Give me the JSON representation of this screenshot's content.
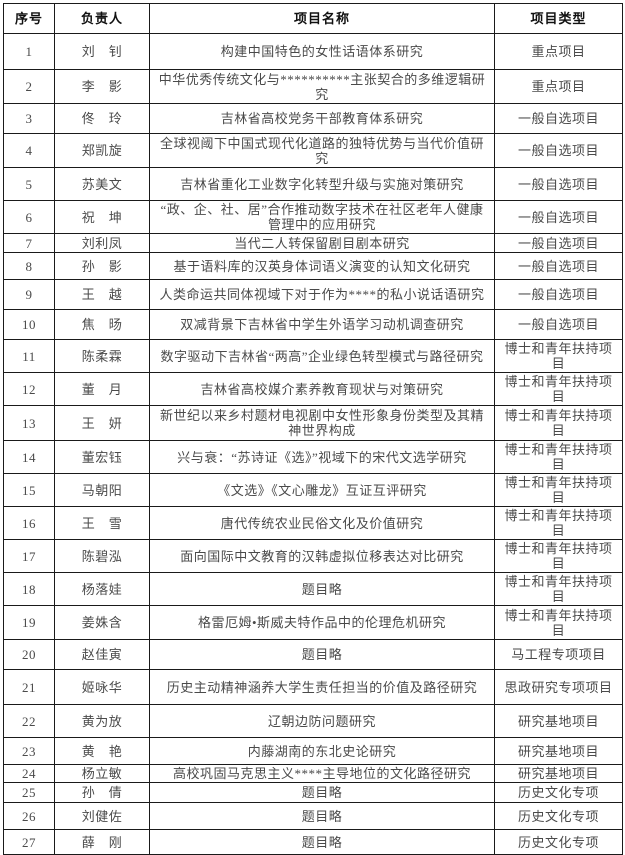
{
  "table": {
    "headers": [
      "序号",
      "负责人",
      "项目名称",
      "项目类型"
    ],
    "rows": [
      {
        "no": "1",
        "leader": "刘　钊",
        "title": "构建中国特色的女性话语体系研究",
        "type": "重点项目"
      },
      {
        "no": "2",
        "leader": "李　影",
        "title": "中华优秀传统文化与**********主张契合的多维逻辑研究",
        "type": "重点项目"
      },
      {
        "no": "3",
        "leader": "佟　玲",
        "title": "吉林省高校党务干部教育体系研究",
        "type": "一般自选项目"
      },
      {
        "no": "4",
        "leader": "郑凯旋",
        "title": "全球视阈下中国式现代化道路的独特优势与当代价值研究",
        "type": "一般自选项目"
      },
      {
        "no": "5",
        "leader": "苏美文",
        "title": "吉林省重化工业数字化转型升级与实施对策研究",
        "type": "一般自选项目"
      },
      {
        "no": "6",
        "leader": "祝　坤",
        "title": "“政、企、社、居”合作推动数字技术在社区老年人健康管理中的应用研究",
        "type": "一般自选项目"
      },
      {
        "no": "7",
        "leader": "刘利凤",
        "title": "当代二人转保留剧目剧本研究",
        "type": "一般自选项目"
      },
      {
        "no": "8",
        "leader": "孙　影",
        "title": "基于语料库的汉英身体词语义演变的认知文化研究",
        "type": "一般自选项目"
      },
      {
        "no": "9",
        "leader": "王　越",
        "title": "人类命运共同体视域下对于作为****的私小说话语研究",
        "type": "一般自选项目"
      },
      {
        "no": "10",
        "leader": "焦　旸",
        "title": "双减背景下吉林省中学生外语学习动机调查研究",
        "type": "一般自选项目"
      },
      {
        "no": "11",
        "leader": "陈柔霖",
        "title": "数字驱动下吉林省“两高”企业绿色转型模式与路径研究",
        "type": "博士和青年扶持项目"
      },
      {
        "no": "12",
        "leader": "董　月",
        "title": "吉林省高校媒介素养教育现状与对策研究",
        "type": "博士和青年扶持项目"
      },
      {
        "no": "13",
        "leader": "王　妍",
        "title": "新世纪以来乡村题材电视剧中女性形象身份类型及其精神世界构成",
        "type": "博士和青年扶持项目"
      },
      {
        "no": "14",
        "leader": "董宏钰",
        "title": "兴与衰：“苏诗证《选》”视域下的宋代文选学研究",
        "type": "博士和青年扶持项目"
      },
      {
        "no": "15",
        "leader": "马朝阳",
        "title": "《文选》《文心雕龙》互证互评研究",
        "type": "博士和青年扶持项目"
      },
      {
        "no": "16",
        "leader": "王　雪",
        "title": "唐代传统农业民俗文化及价值研究",
        "type": "博士和青年扶持项目"
      },
      {
        "no": "17",
        "leader": "陈碧泓",
        "title": "面向国际中文教育的汉韩虚拟位移表达对比研究",
        "type": "博士和青年扶持项目"
      },
      {
        "no": "18",
        "leader": "杨落娃",
        "title": "题目略",
        "type": "博士和青年扶持项目"
      },
      {
        "no": "19",
        "leader": "姜姝含",
        "title": "格雷厄姆•斯威夫特作品中的伦理危机研究",
        "type": "博士和青年扶持项目"
      },
      {
        "no": "20",
        "leader": "赵佳寅",
        "title": "题目略",
        "type": "马工程专项项目"
      },
      {
        "no": "21",
        "leader": "姬咏华",
        "title": "历史主动精神涵养大学生责任担当的价值及路径研究",
        "type": "思政研究专项项目"
      },
      {
        "no": "22",
        "leader": "黄为放",
        "title": "辽朝边防问题研究",
        "type": "研究基地项目"
      },
      {
        "no": "23",
        "leader": "黄　艳",
        "title": "内藤湖南的东北史论研究",
        "type": "研究基地项目"
      },
      {
        "no": "24",
        "leader": "杨立敏",
        "title": "高校巩固马克思主义****主导地位的文化路径研究",
        "type": "研究基地项目"
      },
      {
        "no": "25",
        "leader": "孙　倩",
        "title": "题目略",
        "type": "历史文化专项"
      },
      {
        "no": "26",
        "leader": "刘健佐",
        "title": "题目略",
        "type": "历史文化专项"
      },
      {
        "no": "27",
        "leader": "薛　刚",
        "title": "题目略",
        "type": "历史文化专项"
      }
    ]
  }
}
